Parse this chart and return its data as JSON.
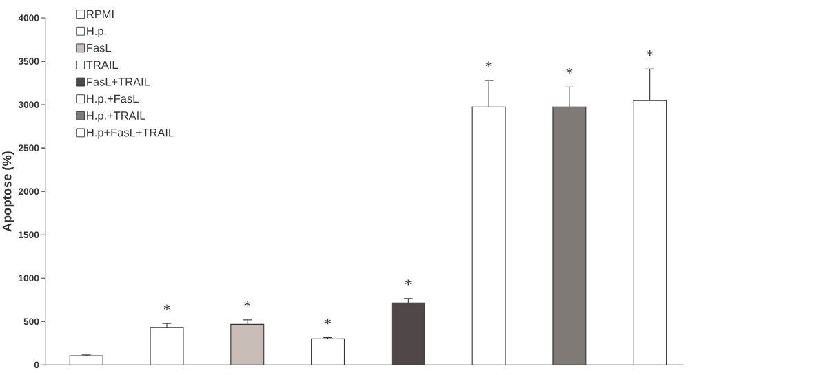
{
  "chart_data": {
    "type": "bar",
    "ylabel": "Apoptose (%)",
    "categories": [
      null,
      null,
      null,
      null,
      null,
      null,
      null,
      null
    ],
    "ylim": [
      0,
      4000
    ],
    "yticks": [
      0,
      500,
      1000,
      1500,
      2000,
      2500,
      3000,
      3500,
      4000
    ],
    "grid": false,
    "legend": "top left",
    "series": [
      {
        "name": "RPMI",
        "color": "#ffffff",
        "values": [
          105,
          null,
          null,
          null,
          null,
          null,
          null,
          null
        ],
        "errors": [
          [
            105,
            114
          ],
          null,
          null,
          null,
          null,
          null,
          null,
          null
        ]
      },
      {
        "name": "H.p.",
        "color": "#ffffff",
        "values": [
          null,
          432,
          null,
          null,
          null,
          null,
          null,
          null
        ],
        "errors": [
          null,
          [
            432,
            477
          ],
          null,
          null,
          null,
          null,
          null,
          null
        ],
        "value_labels": [
          null,
          "*",
          null,
          null,
          null,
          null,
          null,
          null
        ]
      },
      {
        "name": "FasL",
        "color": "#c8beb7",
        "values": [
          null,
          null,
          467,
          null,
          null,
          null,
          null,
          null
        ],
        "errors": [
          null,
          null,
          [
            467,
            519
          ],
          null,
          null,
          null,
          null,
          null
        ],
        "value_labels": [
          null,
          null,
          "*",
          null,
          null,
          null,
          null,
          null
        ]
      },
      {
        "name": "TRAIL",
        "color": "#ffffff",
        "values": [
          null,
          null,
          null,
          302,
          null,
          null,
          null,
          null
        ],
        "errors": [
          null,
          null,
          null,
          [
            302,
            315
          ],
          null,
          null,
          null,
          null
        ],
        "value_labels": [
          null,
          null,
          null,
          "*",
          null,
          null,
          null,
          null
        ]
      },
      {
        "name": "FasL+TRAIL",
        "color": "#504848",
        "values": [
          null,
          null,
          null,
          null,
          713,
          null,
          null,
          null
        ],
        "errors": [
          null,
          null,
          null,
          null,
          [
            713,
            765
          ],
          null,
          null,
          null
        ],
        "value_labels": [
          null,
          null,
          null,
          null,
          "*",
          null,
          null,
          null
        ]
      },
      {
        "name": "H.p.+FasL",
        "color": "#ffffff",
        "values": [
          null,
          null,
          null,
          null,
          null,
          2975,
          null,
          null
        ],
        "errors": [
          null,
          null,
          null,
          null,
          null,
          [
            2975,
            3279
          ],
          null,
          null
        ],
        "value_labels": [
          null,
          null,
          null,
          null,
          null,
          "*",
          null,
          null
        ]
      },
      {
        "name": "H.p.+TRAIL",
        "color": "#807a76",
        "values": [
          null,
          null,
          null,
          null,
          null,
          null,
          2975,
          null
        ],
        "errors": [
          null,
          null,
          null,
          null,
          null,
          null,
          [
            2975,
            3204
          ],
          null
        ],
        "value_labels": [
          null,
          null,
          null,
          null,
          null,
          null,
          "*",
          null
        ]
      },
      {
        "name": "H.p+FasL+TRAIL",
        "color": "#ffffff",
        "values": [
          null,
          null,
          null,
          null,
          null,
          null,
          null,
          3047
        ],
        "errors": [
          null,
          null,
          null,
          null,
          null,
          null,
          null,
          [
            3047,
            3411
          ]
        ],
        "value_labels": [
          null,
          null,
          null,
          null,
          null,
          null,
          null,
          "*"
        ]
      }
    ]
  }
}
